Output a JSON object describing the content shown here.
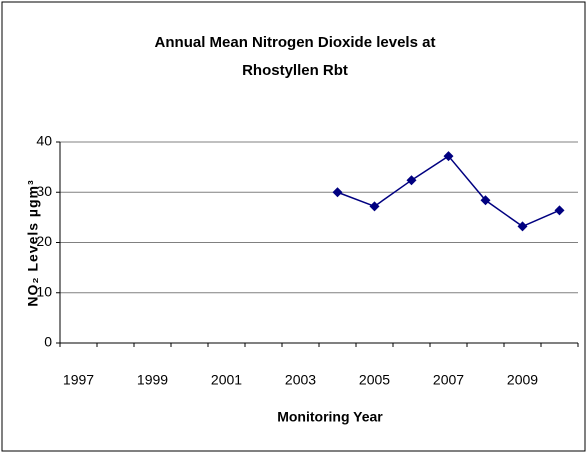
{
  "chart_data": {
    "type": "line",
    "title": [
      "Annual Mean Nitrogen Dioxide levels at",
      "Rhostyllen Rbt"
    ],
    "x_label": "Monitoring Year",
    "y_label": "NO₂ Levels µgm³",
    "categories": [
      "1997",
      null,
      "1999",
      null,
      "2001",
      null,
      "2003",
      null,
      "2005",
      null,
      "2007",
      null,
      "2009",
      null
    ],
    "series": [
      {
        "name": "Rhostyllen Rbt",
        "color": "#000080",
        "values": [
          null,
          null,
          null,
          null,
          null,
          null,
          null,
          30,
          27.2,
          32.4,
          37.2,
          28.4,
          23.2,
          26.4
        ]
      }
    ],
    "ylim": [
      0,
      40
    ],
    "yticks": [
      0,
      10,
      20,
      30,
      40
    ],
    "grid": true
  }
}
